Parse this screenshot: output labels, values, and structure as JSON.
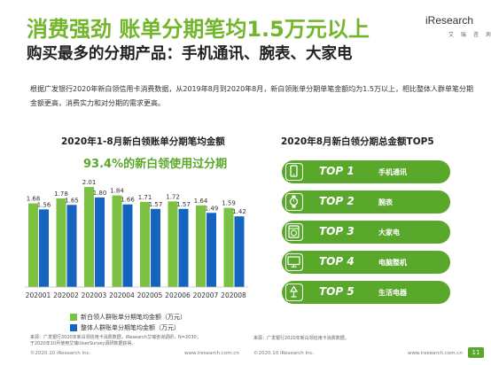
{
  "header": {
    "title": "消费强劲 账单分期笔均1.5万元以上",
    "subtitle": "购买最多的分期产品：手机通讯、腕表、大家电",
    "logo": "iResearch",
    "logo_sub": "艾 瑞 咨 询"
  },
  "body_text": "根据广发银行2020年新白领信用卡消费数据，从2019年8月到2020年8月，新白领账单分期单笔金额均为1.5万以上，相比整体人群单笔分期金额更高，消费实力和对分期的需求更高。",
  "left_panel": {
    "title": "2020年1-8月新白领账单分期笔均金额",
    "highlight": "93.4%的新白领使用过分期",
    "note_lines": [
      "来源：广发银行2020年新白领信用卡消费数据，iResearch艾瑞咨询调研，N=2030；",
      "于2020年10月使用艾瑞iUserSurvey调研数据获得。"
    ],
    "footer": "©2020.10 iResearch Inc.",
    "footer_url": "www.iresearch.com.cn"
  },
  "right_panel": {
    "title": "2020年8月新白领分期总金额TOP5",
    "items": [
      {
        "rank": "TOP 1",
        "name": "手机通讯",
        "icon": "mobile-phone-icon"
      },
      {
        "rank": "TOP 2",
        "name": "腕表",
        "icon": "wristwatch-icon"
      },
      {
        "rank": "TOP 3",
        "name": "大家电",
        "icon": "washing-machine-icon"
      },
      {
        "rank": "TOP 4",
        "name": "电脑整机",
        "icon": "computer-monitor-icon"
      },
      {
        "rank": "TOP 5",
        "name": "生活电器",
        "icon": "lamp-icon"
      }
    ],
    "note": "来源：广发银行2020年新白领信用卡消费数据。",
    "footer": "©2020.10 iResearch Inc.",
    "footer_url": "www.iresearch.com.cn"
  },
  "page_number": "11",
  "colors": {
    "green": "#7dc142",
    "blue": "#1565c0",
    "dark_green": "#5aa82b"
  },
  "chart_data": {
    "type": "bar",
    "categories": [
      "202001",
      "202002",
      "202003",
      "202004",
      "202005",
      "202006",
      "202007",
      "202008"
    ],
    "series": [
      {
        "name": "新白领人群账单分期笔均金额（万元）",
        "values": [
          1.68,
          1.78,
          2.01,
          1.84,
          1.71,
          1.72,
          1.64,
          1.59
        ]
      },
      {
        "name": "整体人群账单分期笔均金额（万元）",
        "values": [
          1.56,
          1.65,
          1.8,
          1.66,
          1.57,
          1.57,
          1.49,
          1.42
        ]
      }
    ],
    "ylim": [
      0,
      2.1
    ],
    "legend_position": "bottom"
  }
}
